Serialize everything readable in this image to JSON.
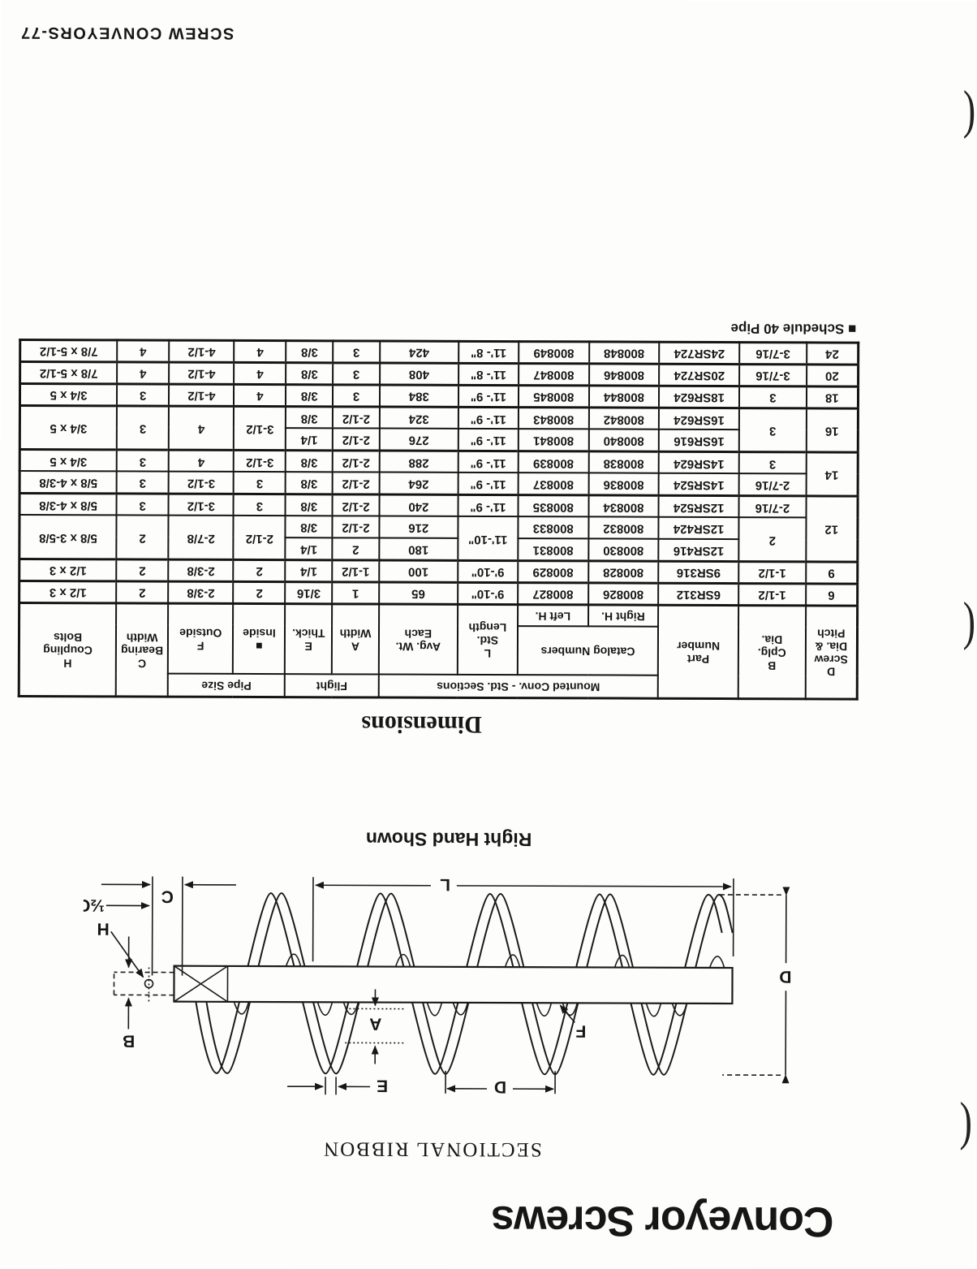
{
  "page": {
    "title": "Conveyor Screws",
    "subtitle": "SECTIONAL RIBBON",
    "footer": "SCREW CONVEYORS-77",
    "binding_mark": "("
  },
  "diagram": {
    "caption": "Right Hand Shown",
    "labels": {
      "length_l": "L",
      "coupling_c": "C",
      "half_c": "½C",
      "bolt_h": "H",
      "shaft_b": "B",
      "dia_d": "D",
      "pitch_d": "D",
      "thick_e": "E",
      "width_a": "A",
      "pipe_f": "F"
    }
  },
  "table": {
    "title": "Dimensions",
    "footnote": "■ Schedule 40 Pipe",
    "groups": {
      "mounted": "Mounted Conv. - Std. Sections",
      "catalog": "Catalog Numbers",
      "flight": "Flight",
      "pipe_size": "Pipe Size"
    },
    "headers": {
      "d": [
        "D",
        "Screw",
        "Dia. &",
        "Pitch"
      ],
      "b": [
        "B",
        "Cplg.",
        "Dia."
      ],
      "part": [
        "Part",
        "Number"
      ],
      "right": "Right H.",
      "left": "Left H.",
      "length": [
        "L",
        "Std.",
        "Length"
      ],
      "weight": [
        "Avg. Wt.",
        "Each"
      ],
      "a": [
        "A",
        "Width"
      ],
      "e": [
        "E",
        "Thick."
      ],
      "inside": [
        "■",
        "Inside"
      ],
      "outside": [
        "F",
        "Outside"
      ],
      "c": [
        "C",
        "Bearing",
        "Width"
      ],
      "h": [
        "H",
        "Coupling",
        "Bolts"
      ]
    },
    "rows": [
      {
        "group": false,
        "cells": [
          {
            "v": "6"
          },
          {
            "v": "1-1/2"
          },
          {
            "v": "6SR312"
          },
          {
            "v": "800826"
          },
          {
            "v": "800827"
          },
          {
            "v": "9'-10\""
          },
          {
            "v": "65"
          },
          {
            "v": "1"
          },
          {
            "v": "3/16"
          },
          {
            "v": "2"
          },
          {
            "v": "2-3/8"
          },
          {
            "v": "2"
          },
          {
            "v": "1/2 x 3"
          }
        ]
      },
      {
        "group": true,
        "cells": [
          {
            "v": "9"
          },
          {
            "v": "1-1/2"
          },
          {
            "v": "9SR316"
          },
          {
            "v": "800828"
          },
          {
            "v": "800829"
          },
          {
            "v": "9'-10\""
          },
          {
            "v": "100"
          },
          {
            "v": "1-1/2"
          },
          {
            "v": "1/4"
          },
          {
            "v": "2"
          },
          {
            "v": "2-3/8"
          },
          {
            "v": "2"
          },
          {
            "v": "1/2 x 3"
          }
        ]
      },
      {
        "group": true,
        "cells": [
          {
            "v": "12",
            "rs": 3
          },
          {
            "v": "2",
            "rs": 2
          },
          {
            "v": "12SR416"
          },
          {
            "v": "800830"
          },
          {
            "v": "800831"
          },
          {
            "v": "11'-10\"",
            "rs": 2
          },
          {
            "v": "180"
          },
          {
            "v": "2"
          },
          {
            "v": "1/4"
          },
          {
            "v": "2-1/2",
            "rs": 2
          },
          {
            "v": "2-7/8",
            "rs": 2
          },
          {
            "v": "2",
            "rs": 2
          },
          {
            "v": "5/8 x 3-5/8",
            "rs": 2
          }
        ]
      },
      {
        "group": false,
        "cells": [
          {
            "v": "12SR424"
          },
          {
            "v": "800832"
          },
          {
            "v": "800833"
          },
          {
            "v": "216"
          },
          {
            "v": "2-1/2"
          },
          {
            "v": "3/8"
          }
        ]
      },
      {
        "group": false,
        "cells": [
          {
            "v": "2-7/16"
          },
          {
            "v": "12SR524"
          },
          {
            "v": "800834"
          },
          {
            "v": "800835"
          },
          {
            "v": "11'- 9\""
          },
          {
            "v": "240"
          },
          {
            "v": "2-1/2"
          },
          {
            "v": "3/8"
          },
          {
            "v": "3"
          },
          {
            "v": "3-1/2"
          },
          {
            "v": "3"
          },
          {
            "v": "5/8 x 4-3/8"
          }
        ]
      },
      {
        "group": true,
        "cells": [
          {
            "v": "14",
            "rs": 2
          },
          {
            "v": "2-7/16"
          },
          {
            "v": "14SR524"
          },
          {
            "v": "800836"
          },
          {
            "v": "800837"
          },
          {
            "v": "11'- 9\""
          },
          {
            "v": "264"
          },
          {
            "v": "2-1/2"
          },
          {
            "v": "3/8"
          },
          {
            "v": "3"
          },
          {
            "v": "3-1/2"
          },
          {
            "v": "3"
          },
          {
            "v": "5/8 x 4-3/8"
          }
        ]
      },
      {
        "group": false,
        "cells": [
          {
            "v": "3"
          },
          {
            "v": "14SR624"
          },
          {
            "v": "800838"
          },
          {
            "v": "800839"
          },
          {
            "v": "11'- 9\""
          },
          {
            "v": "288"
          },
          {
            "v": "2-1/2"
          },
          {
            "v": "3/8"
          },
          {
            "v": "3-1/2"
          },
          {
            "v": "4"
          },
          {
            "v": "3"
          },
          {
            "v": "3/4 x 5"
          }
        ]
      },
      {
        "group": true,
        "cells": [
          {
            "v": "16",
            "rs": 2
          },
          {
            "v": "3",
            "rs": 2
          },
          {
            "v": "16SR616"
          },
          {
            "v": "800840"
          },
          {
            "v": "800841"
          },
          {
            "v": "11'- 9\""
          },
          {
            "v": "276"
          },
          {
            "v": "2-1/2"
          },
          {
            "v": "1/4"
          },
          {
            "v": "3-1/2",
            "rs": 2
          },
          {
            "v": "4",
            "rs": 2
          },
          {
            "v": "3",
            "rs": 2
          },
          {
            "v": "3/4 x 5",
            "rs": 2
          }
        ]
      },
      {
        "group": false,
        "cells": [
          {
            "v": "16SR624"
          },
          {
            "v": "800842"
          },
          {
            "v": "800843"
          },
          {
            "v": "11'- 9\""
          },
          {
            "v": "324"
          },
          {
            "v": "2-1/2"
          },
          {
            "v": "3/8"
          }
        ]
      },
      {
        "group": true,
        "cells": [
          {
            "v": "18"
          },
          {
            "v": "3"
          },
          {
            "v": "18SR624"
          },
          {
            "v": "800844"
          },
          {
            "v": "800845"
          },
          {
            "v": "11'- 9\""
          },
          {
            "v": "384"
          },
          {
            "v": "3"
          },
          {
            "v": "3/8"
          },
          {
            "v": "4"
          },
          {
            "v": "4-1/2"
          },
          {
            "v": "3"
          },
          {
            "v": "3/4 x 5"
          }
        ]
      },
      {
        "group": true,
        "cells": [
          {
            "v": "20"
          },
          {
            "v": "3-7/16"
          },
          {
            "v": "20SR724"
          },
          {
            "v": "800846"
          },
          {
            "v": "800847"
          },
          {
            "v": "11'- 8\""
          },
          {
            "v": "408"
          },
          {
            "v": "3"
          },
          {
            "v": "3/8"
          },
          {
            "v": "4"
          },
          {
            "v": "4-1/2"
          },
          {
            "v": "4"
          },
          {
            "v": "7/8 x 5-1/2"
          }
        ]
      },
      {
        "group": true,
        "cells": [
          {
            "v": "24"
          },
          {
            "v": "3-7/16"
          },
          {
            "v": "24SR724"
          },
          {
            "v": "800848"
          },
          {
            "v": "800849"
          },
          {
            "v": "11'- 8\""
          },
          {
            "v": "424"
          },
          {
            "v": "3"
          },
          {
            "v": "3/8"
          },
          {
            "v": "4"
          },
          {
            "v": "4-1/2"
          },
          {
            "v": "4"
          },
          {
            "v": "7/8 x 5-1/2"
          }
        ]
      }
    ]
  }
}
